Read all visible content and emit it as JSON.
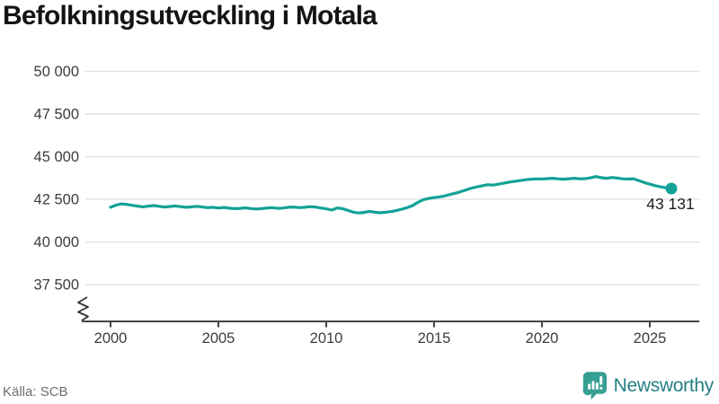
{
  "header": {
    "title": "Befolkningsutveckling i Motala"
  },
  "footer": {
    "source": "Källa: SCB",
    "brand": "Newsworthy"
  },
  "colors": {
    "line": "#12a296",
    "grid": "#e4e4e4",
    "axis": "#444444",
    "tick_label": "#3c3c3c",
    "end_label": "#1f1f1f",
    "logo_icon": "#35a093",
    "logo_text": "#257f86"
  },
  "chart_data": {
    "type": "line",
    "title": "Befolkningsutveckling i Motala",
    "xlabel": "",
    "ylabel": "",
    "grid": true,
    "axis_break": true,
    "x_axis": {
      "ticks": [
        2000,
        2005,
        2010,
        2015,
        2020,
        2025
      ],
      "range": [
        1998.7,
        2027.3
      ]
    },
    "y_axis": {
      "tick_labels": [
        "50 000",
        "47 500",
        "45 000",
        "42 500",
        "40 000",
        "37 500"
      ],
      "tick_values": [
        50000,
        47500,
        45000,
        42500,
        40000,
        37500
      ],
      "shown_range": [
        37500,
        50000
      ]
    },
    "end_label": "43 131",
    "end_value": 43131,
    "source": "SCB",
    "series": [
      {
        "name": "Befolkning",
        "points": [
          [
            2000.0,
            42030
          ],
          [
            2000.25,
            42160
          ],
          [
            2000.5,
            42230
          ],
          [
            2000.75,
            42200
          ],
          [
            2001.0,
            42150
          ],
          [
            2001.25,
            42100
          ],
          [
            2001.5,
            42060
          ],
          [
            2001.75,
            42100
          ],
          [
            2002.0,
            42130
          ],
          [
            2002.25,
            42090
          ],
          [
            2002.5,
            42050
          ],
          [
            2002.75,
            42080
          ],
          [
            2003.0,
            42110
          ],
          [
            2003.25,
            42070
          ],
          [
            2003.5,
            42030
          ],
          [
            2003.75,
            42060
          ],
          [
            2004.0,
            42090
          ],
          [
            2004.25,
            42050
          ],
          [
            2004.5,
            42010
          ],
          [
            2004.75,
            42030
          ],
          [
            2005.0,
            41990
          ],
          [
            2005.25,
            42020
          ],
          [
            2005.5,
            41980
          ],
          [
            2005.75,
            41950
          ],
          [
            2006.0,
            41970
          ],
          [
            2006.25,
            42000
          ],
          [
            2006.5,
            41960
          ],
          [
            2006.75,
            41930
          ],
          [
            2007.0,
            41950
          ],
          [
            2007.25,
            41990
          ],
          [
            2007.5,
            42010
          ],
          [
            2007.75,
            41970
          ],
          [
            2008.0,
            41990
          ],
          [
            2008.25,
            42030
          ],
          [
            2008.5,
            42050
          ],
          [
            2008.75,
            42010
          ],
          [
            2009.0,
            42030
          ],
          [
            2009.25,
            42070
          ],
          [
            2009.5,
            42040
          ],
          [
            2009.75,
            41990
          ],
          [
            2010.0,
            41940
          ],
          [
            2010.25,
            41870
          ],
          [
            2010.5,
            41990
          ],
          [
            2010.75,
            41950
          ],
          [
            2011.0,
            41850
          ],
          [
            2011.25,
            41750
          ],
          [
            2011.5,
            41700
          ],
          [
            2011.75,
            41730
          ],
          [
            2012.0,
            41790
          ],
          [
            2012.25,
            41750
          ],
          [
            2012.5,
            41710
          ],
          [
            2012.75,
            41740
          ],
          [
            2013.0,
            41780
          ],
          [
            2013.25,
            41840
          ],
          [
            2013.5,
            41920
          ],
          [
            2013.75,
            42010
          ],
          [
            2014.0,
            42130
          ],
          [
            2014.25,
            42320
          ],
          [
            2014.5,
            42480
          ],
          [
            2014.75,
            42550
          ],
          [
            2015.0,
            42600
          ],
          [
            2015.25,
            42640
          ],
          [
            2015.5,
            42700
          ],
          [
            2015.75,
            42790
          ],
          [
            2016.0,
            42860
          ],
          [
            2016.25,
            42950
          ],
          [
            2016.5,
            43060
          ],
          [
            2016.75,
            43160
          ],
          [
            2017.0,
            43230
          ],
          [
            2017.25,
            43300
          ],
          [
            2017.5,
            43360
          ],
          [
            2017.75,
            43330
          ],
          [
            2018.0,
            43390
          ],
          [
            2018.25,
            43450
          ],
          [
            2018.5,
            43510
          ],
          [
            2018.75,
            43560
          ],
          [
            2019.0,
            43600
          ],
          [
            2019.25,
            43650
          ],
          [
            2019.5,
            43680
          ],
          [
            2019.75,
            43700
          ],
          [
            2020.0,
            43690
          ],
          [
            2020.25,
            43710
          ],
          [
            2020.5,
            43730
          ],
          [
            2020.75,
            43700
          ],
          [
            2021.0,
            43680
          ],
          [
            2021.25,
            43705
          ],
          [
            2021.5,
            43730
          ],
          [
            2021.75,
            43700
          ],
          [
            2022.0,
            43710
          ],
          [
            2022.25,
            43760
          ],
          [
            2022.5,
            43830
          ],
          [
            2022.75,
            43770
          ],
          [
            2023.0,
            43730
          ],
          [
            2023.25,
            43780
          ],
          [
            2023.5,
            43740
          ],
          [
            2023.75,
            43700
          ],
          [
            2024.0,
            43690
          ],
          [
            2024.25,
            43705
          ],
          [
            2024.5,
            43590
          ],
          [
            2024.75,
            43480
          ],
          [
            2025.0,
            43390
          ],
          [
            2025.25,
            43300
          ],
          [
            2025.5,
            43230
          ],
          [
            2025.75,
            43175
          ],
          [
            2026.0,
            43131
          ]
        ]
      }
    ]
  }
}
